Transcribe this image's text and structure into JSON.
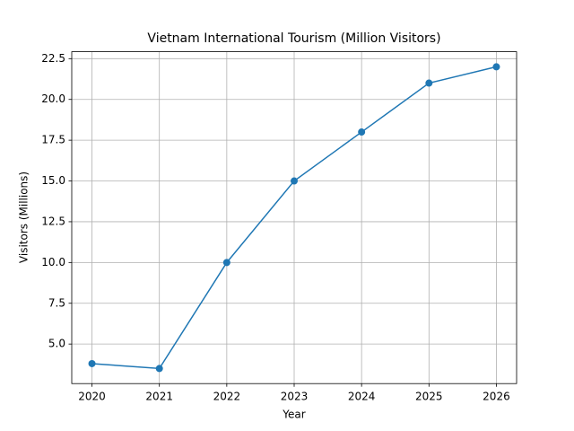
{
  "chart_data": {
    "type": "line",
    "title": "Vietnam International Tourism (Million Visitors)",
    "x_label": "Year",
    "y_label": "Visitors (Millions)",
    "x": [
      2020,
      2021,
      2022,
      2023,
      2024,
      2025,
      2026
    ],
    "series": [
      {
        "name": "Visitors",
        "color": "#1f77b4",
        "values": [
          3.8,
          3.5,
          10,
          15,
          18,
          21,
          22
        ]
      }
    ],
    "xlim": [
      2019.7,
      2026.3
    ],
    "xticks": [
      2020,
      2021,
      2022,
      2023,
      2024,
      2025,
      2026
    ],
    "ylim": [
      2.575,
      22.925
    ],
    "yticks": [
      {
        "value": 5,
        "label": "5.0"
      },
      {
        "value": 7.5,
        "label": "7.5"
      },
      {
        "value": 10,
        "label": "10.0"
      },
      {
        "value": 12.5,
        "label": "12.5"
      },
      {
        "value": 15,
        "label": "15.0"
      },
      {
        "value": 17.5,
        "label": "17.5"
      },
      {
        "value": 20,
        "label": "20.0"
      },
      {
        "value": 22.5,
        "label": "22.5"
      }
    ],
    "grid": true,
    "markers": true
  }
}
